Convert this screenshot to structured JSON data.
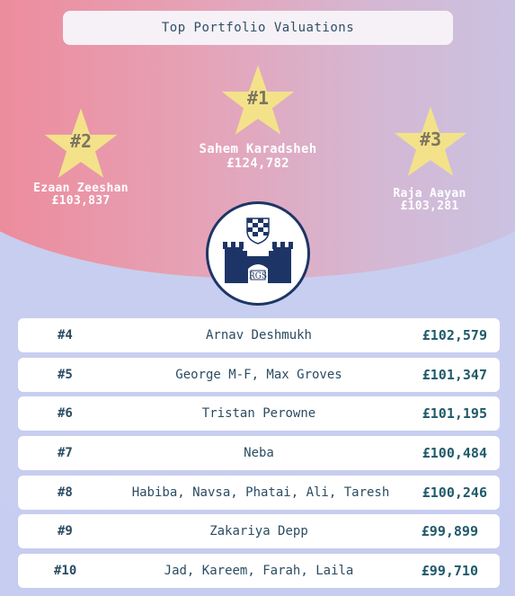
{
  "title": "Top Portfolio Valuations",
  "podium": [
    {
      "rank": "#1",
      "name": "Sahem Karadsheh",
      "value": "£124,782"
    },
    {
      "rank": "#2",
      "name": "Ezaan Zeeshan",
      "value": "£103,837"
    },
    {
      "rank": "#3",
      "name": "Raja Aayan",
      "value": "£103,281"
    }
  ],
  "logo_text": "RGS",
  "rows": [
    {
      "rank": "#4",
      "name": "Arnav Deshmukh",
      "value": "£102,579"
    },
    {
      "rank": "#5",
      "name": "George M-F, Max Groves",
      "value": "£101,347"
    },
    {
      "rank": "#6",
      "name": "Tristan Perowne",
      "value": "£101,195"
    },
    {
      "rank": "#7",
      "name": "Neba",
      "value": "£100,484"
    },
    {
      "rank": "#8",
      "name": "Habiba, Navsa, Phatai, Ali, Taresh",
      "value": "£100,246"
    },
    {
      "rank": "#9",
      "name": "Zakariya Depp",
      "value": "£99,899"
    },
    {
      "rank": "#10",
      "name": "Jad, Kareem, Farah, Laila",
      "value": "£99,710"
    }
  ],
  "colors": {
    "star": "#f3e28a",
    "text_dark": "#2b4c63",
    "logo_navy": "#1d3566"
  }
}
